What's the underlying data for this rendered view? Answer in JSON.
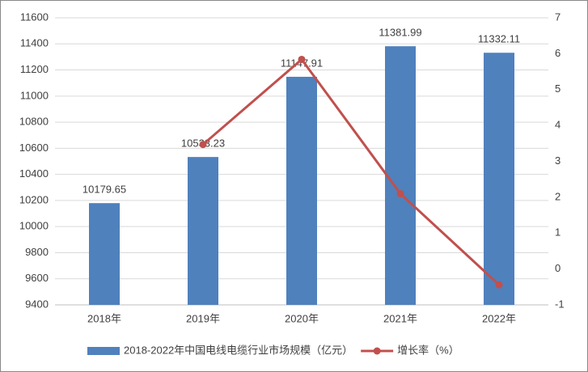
{
  "chart_data": {
    "type": "bar",
    "categories": [
      "2018年",
      "2019年",
      "2020年",
      "2021年",
      "2022年"
    ],
    "series": [
      {
        "name": "2018-2022年中国电线电缆行业市场规模（亿元）",
        "type": "bar",
        "color": "#4f81bd",
        "values": [
          10179.65,
          10533.23,
          11147.91,
          11381.99,
          11332.11
        ],
        "show_labels": true
      },
      {
        "name": "增长率（%）",
        "type": "line",
        "axis": "y2",
        "color": "#c0504d",
        "values": [
          null,
          3.47,
          5.84,
          2.1,
          -0.44
        ]
      }
    ],
    "ylim": [
      9400,
      11600
    ],
    "yticks": [
      9400,
      9600,
      9800,
      10000,
      10200,
      10400,
      10600,
      10800,
      11000,
      11200,
      11400,
      11600
    ],
    "y2lim": [
      -1,
      7
    ],
    "y2ticks": [
      -1,
      0,
      1,
      2,
      3,
      4,
      5,
      6,
      7
    ],
    "grid": true,
    "legend": "bottom"
  }
}
